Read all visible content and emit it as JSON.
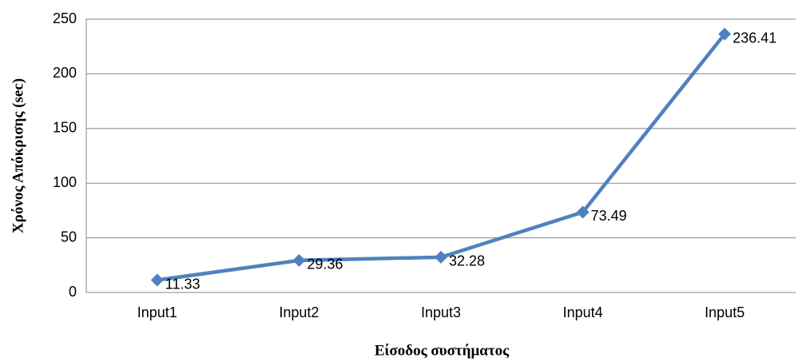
{
  "chart_data": {
    "type": "line",
    "categories": [
      "Input1",
      "Input2",
      "Input3",
      "Input4",
      "Input5"
    ],
    "series": [
      {
        "name": "Χρόνος Απόκρισης",
        "color": "#4f81bd",
        "values": [
          11.33,
          29.36,
          32.28,
          73.49,
          236.41
        ]
      }
    ],
    "xlabel": "Είσοδος συστήματος",
    "ylabel": "Χρόνος Απόκρισης (sec)",
    "ylim": [
      0,
      250
    ],
    "yticks": [
      0,
      50,
      100,
      150,
      200,
      250
    ],
    "grid": true,
    "legend": false
  }
}
